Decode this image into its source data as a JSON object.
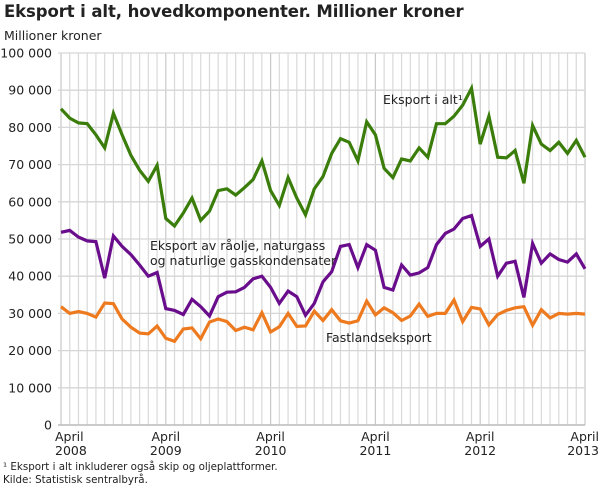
{
  "chart_data": {
    "type": "line",
    "title": "Eksport i alt, hovedkomponenter. Millioner kroner",
    "xlabel": "",
    "ylabel": "Millioner kroner",
    "ylim": [
      0,
      100000
    ],
    "yticks": [
      "0",
      "10 000",
      "20 000",
      "30 000",
      "40 000",
      "50 000",
      "60 000",
      "70 000",
      "80 000",
      "90 000",
      "100 000"
    ],
    "xtick_labels": [
      {
        "line1": "April",
        "line2": "2008",
        "index": 0
      },
      {
        "line1": "April",
        "line2": "2009",
        "index": 12
      },
      {
        "line1": "April",
        "line2": "2010",
        "index": 24
      },
      {
        "line1": "April",
        "line2": "2011",
        "index": 36
      },
      {
        "line1": "April",
        "line2": "2012",
        "index": 48
      },
      {
        "line1": "April",
        "line2": "2013",
        "index": 60
      }
    ],
    "x_range": "April 2008 – April 2013 (monthly)",
    "grid": true,
    "series": [
      {
        "name": "Eksport i alt¹",
        "color": "#3a7d0a",
        "label_pos": [
          383,
          104
        ],
        "values": [
          85000,
          82500,
          81200,
          81000,
          78000,
          74500,
          83800,
          78000,
          72500,
          68500,
          65500,
          69800,
          55500,
          53500,
          57000,
          61000,
          55000,
          57500,
          63000,
          63500,
          61800,
          63800,
          66000,
          71000,
          63000,
          59000,
          66500,
          61000,
          56500,
          63500,
          66800,
          73000,
          77000,
          76000,
          71000,
          81500,
          78000,
          69000,
          66500,
          71500,
          71000,
          74500,
          72000,
          81000,
          81000,
          83000,
          86000,
          90500,
          75500,
          83000,
          72000,
          71800,
          73800,
          65000,
          80500,
          75500,
          73800,
          76000,
          73000,
          76500,
          72000
        ]
      },
      {
        "name": "Eksport av råolje, naturgass og naturlige gasskondensater",
        "label_lines": [
          "Eksport av råolje, naturgass",
          "og naturlige gasskondensater"
        ],
        "color": "#6a0d8c",
        "label_pos": [
          150,
          250
        ],
        "values": [
          51800,
          52300,
          50500,
          49500,
          49300,
          39500,
          50800,
          48000,
          45800,
          43000,
          40000,
          41000,
          31300,
          30800,
          29700,
          33800,
          31800,
          29300,
          34500,
          35700,
          35800,
          37000,
          39300,
          40000,
          37000,
          32700,
          36000,
          34500,
          29500,
          32700,
          38500,
          41200,
          48000,
          48500,
          42300,
          48500,
          47000,
          37000,
          36300,
          43000,
          40300,
          40900,
          42300,
          48500,
          51500,
          52700,
          55500,
          56300,
          48000,
          50000,
          40000,
          43500,
          44000,
          34300,
          48800,
          43500,
          46000,
          44500,
          43800,
          46000,
          42000
        ]
      },
      {
        "name": "Fastlandseksport",
        "color": "#ee7a1f",
        "label_pos": [
          326,
          342
        ],
        "values": [
          31800,
          30000,
          30500,
          30000,
          29000,
          32800,
          32600,
          28500,
          26300,
          24700,
          24500,
          26600,
          23300,
          22500,
          25800,
          26100,
          23200,
          27700,
          28500,
          27800,
          25400,
          26300,
          25600,
          30200,
          25000,
          26400,
          30000,
          26500,
          26600,
          30600,
          28100,
          31000,
          28000,
          27400,
          28000,
          33300,
          29600,
          31500,
          30200,
          28100,
          29300,
          32500,
          29200,
          30000,
          30000,
          33600,
          27800,
          31600,
          31200,
          26900,
          29700,
          30800,
          31500,
          31800,
          26800,
          31000,
          28800,
          30000,
          29800,
          30000,
          29800
        ]
      }
    ]
  },
  "footnotes": {
    "note": "¹ Eksport i alt inkluderer også skip og oljeplattformer.",
    "source": "Kilde: Statistisk sentralbyrå."
  }
}
